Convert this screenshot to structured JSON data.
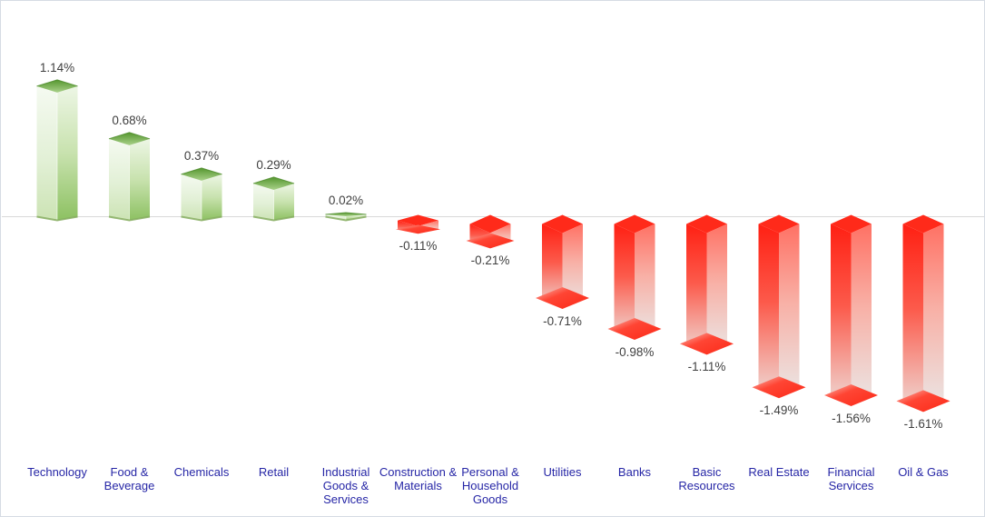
{
  "chart_data": {
    "type": "bar",
    "style": "3d-column",
    "title": "",
    "xlabel": "",
    "ylabel": "",
    "unit": "%",
    "legend": false,
    "gridlines": false,
    "baseline": 0,
    "ylim": [
      -1.8,
      1.4
    ],
    "categories": [
      "Technology",
      "Food & Beverage",
      "Chemicals",
      "Retail",
      "Industrial Goods & Services",
      "Construction & Materials",
      "Personal & Household Goods",
      "Utilities",
      "Banks",
      "Basic Resources",
      "Real Estate",
      "Financial Services",
      "Oil & Gas"
    ],
    "values": [
      1.14,
      0.68,
      0.37,
      0.29,
      0.02,
      -0.11,
      -0.21,
      -0.71,
      -0.98,
      -1.11,
      -1.49,
      -1.56,
      -1.61
    ],
    "labels": [
      "1.14%",
      "0.68%",
      "0.37%",
      "0.29%",
      "0.02%",
      "-0.11%",
      "-0.21%",
      "-0.71%",
      "-0.98%",
      "-1.11%",
      "-1.49%",
      "-1.56%",
      "-1.61%"
    ],
    "colors": {
      "positive": "#76b24a",
      "negative": "#ff2d1f",
      "value_label": "#3f3f3f",
      "category_label": "#2626a6",
      "baseline_line": "#d9d9d9",
      "frame_border": "#d6dbe4",
      "background": "#ffffff"
    }
  }
}
